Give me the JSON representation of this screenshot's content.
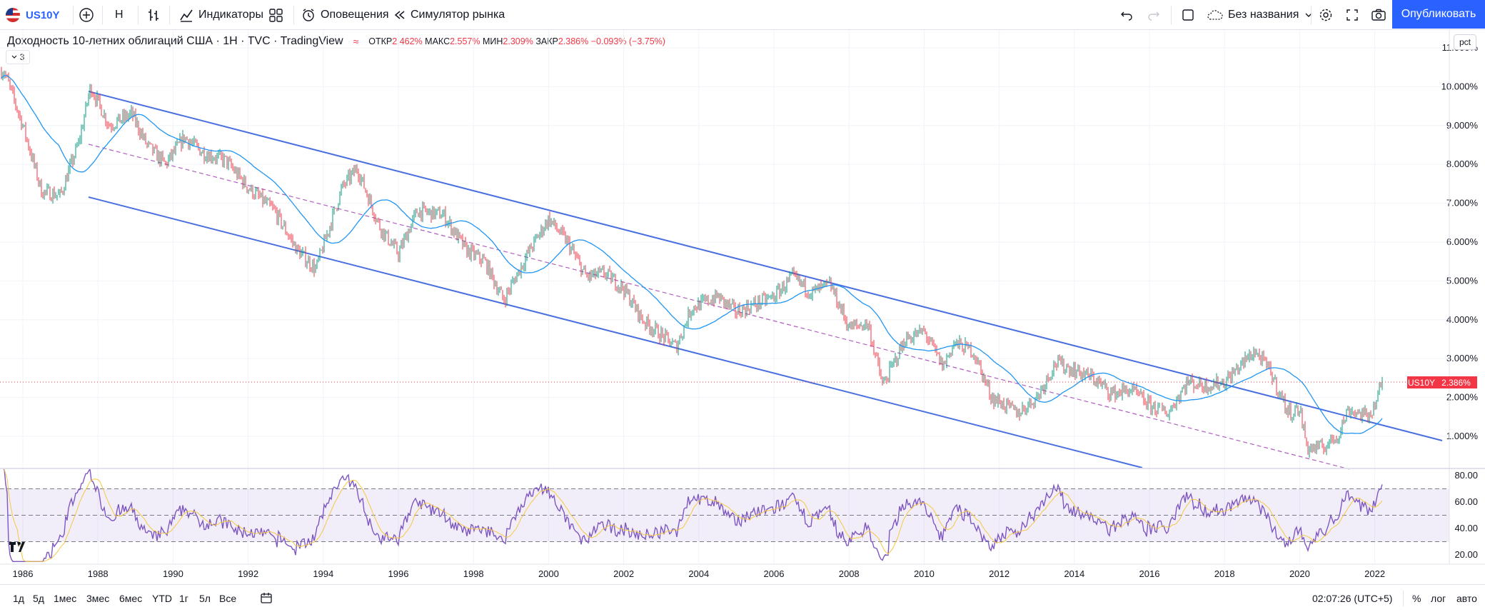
{
  "toolbar": {
    "symbol": "US10Y",
    "interval": "H",
    "indicators_label": "Индикаторы",
    "alerts_label": "Оповещения",
    "replay_label": "Симулятор рынка",
    "layout_name": "Без названия",
    "publish_label": "Опубликовать"
  },
  "legend": {
    "title": "Доходность 10-летних облигаций США · 1H · TVC · TradingView",
    "open_label": "ОТКР",
    "open_value": "2.462%",
    "high_label": "МАКС",
    "high_value": "2.557%",
    "low_label": "МИН",
    "low_value": "2.309%",
    "close_label": "ЗАКР",
    "close_value": "2.386%",
    "change": "−0.093% (−3.75%)",
    "collapse_count": "3"
  },
  "price_axis": {
    "labels": [
      "11.000%",
      "10.000%",
      "9.000%",
      "8.000%",
      "7.000%",
      "6.000%",
      "5.000%",
      "4.000%",
      "3.000%",
      "2.000%",
      "1.000%"
    ],
    "current_price": "2.386%",
    "symbol_tag": "US10Y",
    "scale_button": "pct"
  },
  "rsi_axis": {
    "labels": [
      "80.00",
      "60.00",
      "40.00",
      "20.00"
    ]
  },
  "time_axis": {
    "labels": [
      "1986",
      "1988",
      "1990",
      "1992",
      "1994",
      "1996",
      "1998",
      "2000",
      "2002",
      "2004",
      "2006",
      "2008",
      "2010",
      "2012",
      "2014",
      "2016",
      "2018",
      "2020",
      "2022"
    ]
  },
  "bottom_bar": {
    "ranges": [
      "1д",
      "5д",
      "1мес",
      "3мес",
      "6мес",
      "YTD",
      "1г",
      "5л",
      "Все"
    ],
    "clock": "02:07:26 (UTC+5)",
    "percent": "%",
    "log": "лог",
    "auto": "авто"
  },
  "colors": {
    "accent": "#2962ff",
    "down": "#f23645",
    "up": "#089981",
    "ma": "#2196f3",
    "rsi": "#7e57c2",
    "rsi_ma": "#f5c842"
  },
  "chart_data": {
    "type": "line",
    "x": [
      1985.5,
      1986.0,
      1986.5,
      1987.0,
      1987.5,
      1987.8,
      1988.3,
      1988.9,
      1989.3,
      1989.8,
      1990.3,
      1990.8,
      1991.4,
      1992.0,
      1992.7,
      1993.3,
      1993.8,
      1994.5,
      1994.9,
      1995.5,
      1996.0,
      1996.5,
      1997.2,
      1997.8,
      1998.3,
      1998.8,
      1999.5,
      2000.0,
      2000.5,
      2001.0,
      2001.5,
      2002.0,
      2002.5,
      2003.0,
      2003.4,
      2003.8,
      2004.5,
      2005.0,
      2005.5,
      2006.0,
      2006.5,
      2007.0,
      2007.5,
      2008.0,
      2008.5,
      2008.9,
      2009.5,
      2010.0,
      2010.5,
      2010.8,
      2011.3,
      2011.8,
      2012.5,
      2013.0,
      2013.5,
      2014.0,
      2014.5,
      2015.0,
      2015.5,
      2016.0,
      2016.5,
      2017.0,
      2017.5,
      2018.0,
      2018.8,
      2019.2,
      2019.7,
      2020.0,
      2020.2,
      2020.6,
      2021.0,
      2021.3,
      2021.8,
      2022.0,
      2022.2
    ],
    "y": [
      10.4,
      9.0,
      7.3,
      7.2,
      8.6,
      10.0,
      9.0,
      9.3,
      8.5,
      8.0,
      8.7,
      8.3,
      8.1,
      7.4,
      6.8,
      5.8,
      5.3,
      7.4,
      7.9,
      6.4,
      5.7,
      6.8,
      6.7,
      5.8,
      5.5,
      4.5,
      5.8,
      6.6,
      6.0,
      5.1,
      5.2,
      4.8,
      4.0,
      3.6,
      3.3,
      4.3,
      4.6,
      4.2,
      4.4,
      4.6,
      5.1,
      4.7,
      4.9,
      3.8,
      3.9,
      2.3,
      3.5,
      3.7,
      2.8,
      3.4,
      3.2,
      2.0,
      1.6,
      2.0,
      2.9,
      2.7,
      2.5,
      2.1,
      2.2,
      1.8,
      1.6,
      2.4,
      2.3,
      2.4,
      3.2,
      2.7,
      1.6,
      1.7,
      0.7,
      0.7,
      1.0,
      1.7,
      1.5,
      1.8,
      2.4
    ],
    "ylim": [
      0.5,
      11.2
    ],
    "rsi": {
      "ylim": [
        15,
        85
      ],
      "levels": [
        70,
        50,
        30
      ]
    }
  }
}
